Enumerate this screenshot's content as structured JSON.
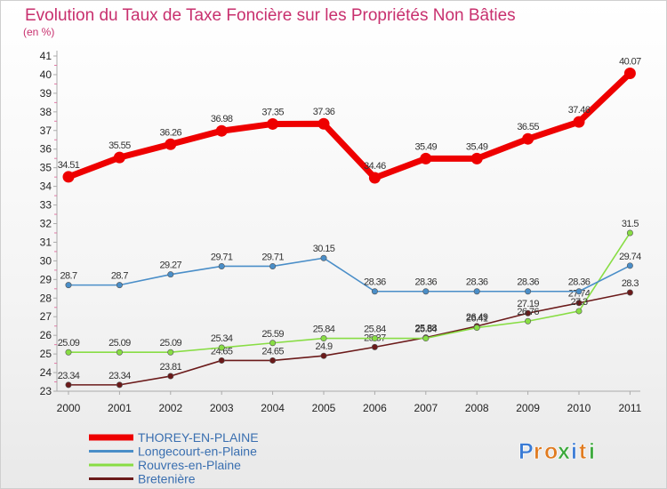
{
  "chart_data": {
    "type": "line",
    "title": "Evolution du Taux de Taxe Foncière sur les Propriétés Non Bâties",
    "subtitle": "(en %)",
    "xlabel": "",
    "ylabel": "",
    "categories": [
      "2000",
      "2001",
      "2002",
      "2003",
      "2004",
      "2005",
      "2006",
      "2007",
      "2008",
      "2009",
      "2010",
      "2011"
    ],
    "ylim": [
      23,
      41
    ],
    "yticks": [
      23,
      24,
      25,
      26,
      27,
      28,
      29,
      30,
      31,
      32,
      33,
      34,
      35,
      36,
      37,
      38,
      39,
      40,
      41
    ],
    "grid": false,
    "legend_position": "bottom-left",
    "series": [
      {
        "name": "THOREY-EN-PLAINE",
        "color": "#ee0000",
        "values": [
          34.51,
          35.55,
          36.26,
          36.98,
          37.35,
          37.36,
          34.46,
          35.49,
          35.49,
          36.55,
          37.46,
          40.07
        ],
        "labels": [
          "34.51",
          "35.55",
          "36.26",
          "36.98",
          "37.35",
          "37.36",
          "34.46",
          "35.49",
          "35.49",
          "36.55",
          "37.46",
          "40.07"
        ]
      },
      {
        "name": "Longecourt-en-Plaine",
        "color": "#4a8ec8",
        "values": [
          28.7,
          28.7,
          29.27,
          29.71,
          29.71,
          30.15,
          28.36,
          28.36,
          28.36,
          28.36,
          28.36,
          29.74
        ],
        "labels": [
          "28.7",
          "28.7",
          "29.27",
          "29.71",
          "29.71",
          "30.15",
          "28.36",
          "28.36",
          "28.36",
          "28.36",
          "28.36",
          "29.74"
        ]
      },
      {
        "name": "Rouvres-en-Plaine",
        "color": "#88dd44",
        "values": [
          25.09,
          25.09,
          25.09,
          25.34,
          25.59,
          25.84,
          25.84,
          25.84,
          26.41,
          26.76,
          27.3,
          31.5
        ],
        "labels": [
          "25.09",
          "25.09",
          "25.09",
          "25.34",
          "25.59",
          "25.84",
          "25.84",
          "25.84",
          "26.41",
          "26.76",
          "27.3",
          "31.5"
        ]
      },
      {
        "name": "Bretenière",
        "color": "#6b1a1a",
        "values": [
          23.34,
          23.34,
          23.81,
          24.65,
          24.65,
          24.9,
          25.37,
          25.88,
          26.49,
          27.19,
          27.74,
          28.3
        ],
        "labels": [
          "23.34",
          "23.34",
          "23.81",
          "24.65",
          "24.65",
          "24.9",
          "25.37",
          "25.88",
          "26.49",
          "27.19",
          "27.74",
          "28.3"
        ]
      }
    ]
  },
  "brand": {
    "letters": [
      "P",
      "r",
      "o",
      "x",
      "i",
      "t",
      "i"
    ],
    "colors": [
      "#3a7bd5",
      "#e07b20",
      "#e07b20",
      "#3aa83a",
      "#3a7bd5",
      "#e07b20",
      "#3aa83a"
    ]
  }
}
